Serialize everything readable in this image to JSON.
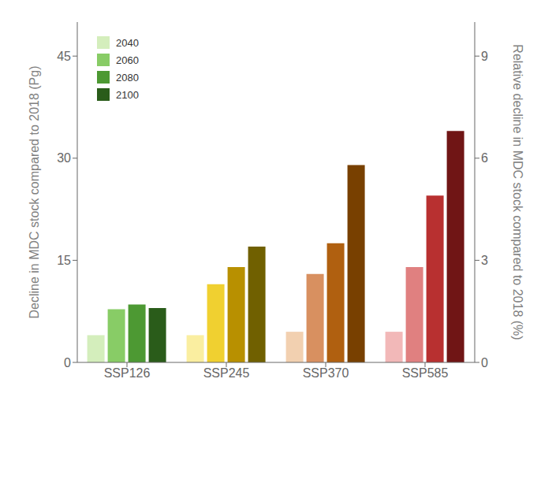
{
  "chart_data": {
    "type": "bar",
    "categories": [
      "SSP126",
      "SSP245",
      "SSP370",
      "SSP585"
    ],
    "series": [
      {
        "name": "2040",
        "color": "#d4eebc",
        "colors": [
          "#d4eebc",
          "#faeea0",
          "#f2d0b0",
          "#f2b8b8"
        ],
        "values": [
          4.0,
          4.0,
          4.5,
          4.5
        ]
      },
      {
        "name": "2060",
        "color": "#88cc66",
        "colors": [
          "#88cc66",
          "#f0d030",
          "#d89060",
          "#e08080"
        ],
        "values": [
          7.8,
          11.5,
          13.0,
          14.0
        ]
      },
      {
        "name": "2080",
        "color": "#4d9933",
        "colors": [
          "#4d9933",
          "#b89000",
          "#b06010",
          "#b83030"
        ],
        "values": [
          8.5,
          14.0,
          17.5,
          24.5
        ]
      },
      {
        "name": "2100",
        "color": "#2a5c1a",
        "colors": [
          "#2a5c1a",
          "#706000",
          "#784000",
          "#701515"
        ],
        "values": [
          8.0,
          17.0,
          29.0,
          34.0
        ]
      }
    ],
    "ylim": [
      0,
      50
    ],
    "yticks": [
      0,
      15,
      30,
      45
    ],
    "y2lim": [
      0,
      10
    ],
    "y2ticks": [
      0,
      3,
      6,
      9
    ],
    "ylabel": "Decline in MDC stock compared to 2018 (Pg)",
    "y2label": "Relative decline in MDC stock compared to 2018 (%)",
    "legend": "upper left",
    "grid": false
  }
}
